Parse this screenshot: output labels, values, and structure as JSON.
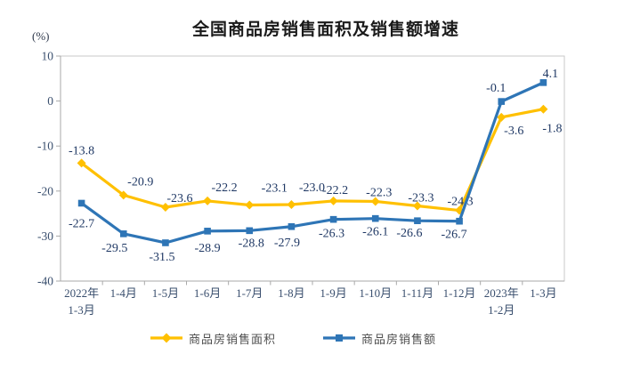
{
  "title": "全国商品房销售面积及销售额增速",
  "y_axis_unit": "(%)",
  "colors": {
    "series_area": "#FFC000",
    "series_amount": "#2E75B6",
    "data_label": "#1F3864",
    "axis_label": "#3a4f6e",
    "legend_text": "#4d4d4d",
    "frame": "#c9c9c9",
    "axis_line": "#a9a9a9"
  },
  "chart_data": {
    "type": "line",
    "title": "全国商品房销售面积及销售额增速",
    "ylabel": "(%)",
    "ylim": [
      -40,
      10
    ],
    "y_ticks": [
      "10",
      "0",
      "-10",
      "-20",
      "-30",
      "-40"
    ],
    "y_tick_values": [
      10,
      0,
      -10,
      -20,
      -30,
      -40
    ],
    "grid": false,
    "legend_position": "bottom",
    "categories": [
      [
        "2022年",
        "1-3月"
      ],
      [
        "1-4月"
      ],
      [
        "1-5月"
      ],
      [
        "1-6月"
      ],
      [
        "1-7月"
      ],
      [
        "1-8月"
      ],
      [
        "1-9月"
      ],
      [
        "1-10月"
      ],
      [
        "1-11月"
      ],
      [
        "1-12月"
      ],
      [
        "2023年",
        "1-2月"
      ],
      [
        "1-3月"
      ]
    ],
    "series": [
      {
        "name": "商品房销售面积",
        "color": "#FFC000",
        "marker": "diamond",
        "values": [
          -13.8,
          -20.9,
          -23.6,
          -22.2,
          -23.1,
          -23.0,
          -22.2,
          -22.3,
          -23.3,
          -24.3,
          -3.6,
          -1.8
        ],
        "labels": [
          "-13.8",
          "-20.9",
          "-23.6",
          "-22.2",
          "-23.1",
          "-23.0",
          "-22.2",
          "-22.3",
          "-23.3",
          "-24.3",
          "-3.6",
          "-1.8"
        ]
      },
      {
        "name": "商品房销售额",
        "color": "#2E75B6",
        "marker": "square",
        "values": [
          -22.7,
          -29.5,
          -31.5,
          -28.9,
          -28.8,
          -27.9,
          -26.3,
          -26.1,
          -26.6,
          -26.7,
          -0.1,
          4.1
        ],
        "labels": [
          "-22.7",
          "-29.5",
          "-31.5",
          "-28.9",
          "-28.8",
          "-27.9",
          "-26.3",
          "-26.1",
          "-26.6",
          "-26.7",
          "-0.1",
          "4.1"
        ]
      }
    ]
  }
}
